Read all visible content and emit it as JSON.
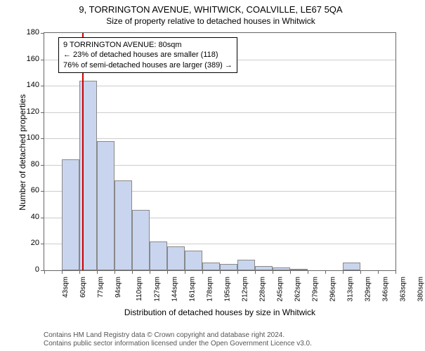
{
  "title": "9, TORRINGTON AVENUE, WHITWICK, COALVILLE, LE67 5QA",
  "subtitle": "Size of property relative to detached houses in Whitwick",
  "y_axis_label": "Number of detached properties",
  "x_axis_label": "Distribution of detached houses by size in Whitwick",
  "chart": {
    "type": "histogram",
    "ylim": [
      0,
      180
    ],
    "ytick_step": 20,
    "y_ticks": [
      0,
      20,
      40,
      60,
      80,
      100,
      120,
      140,
      160,
      180
    ],
    "x_tick_labels": [
      "43sqm",
      "60sqm",
      "77sqm",
      "94sqm",
      "110sqm",
      "127sqm",
      "144sqm",
      "161sqm",
      "178sqm",
      "195sqm",
      "212sqm",
      "228sqm",
      "245sqm",
      "262sqm",
      "279sqm",
      "296sqm",
      "313sqm",
      "329sqm",
      "346sqm",
      "363sqm",
      "380sqm"
    ],
    "bars": [
      {
        "value": 0
      },
      {
        "value": 84
      },
      {
        "value": 144
      },
      {
        "value": 98
      },
      {
        "value": 68
      },
      {
        "value": 46
      },
      {
        "value": 22
      },
      {
        "value": 18
      },
      {
        "value": 15
      },
      {
        "value": 6
      },
      {
        "value": 5
      },
      {
        "value": 8
      },
      {
        "value": 3
      },
      {
        "value": 2
      },
      {
        "value": 1
      },
      {
        "value": 0
      },
      {
        "value": 0
      },
      {
        "value": 6
      },
      {
        "value": 0
      },
      {
        "value": 0
      }
    ],
    "bar_fill": "#c9d5ee",
    "bar_border": "#888888",
    "background_color": "#ffffff",
    "grid_color": "#cccccc",
    "axis_color": "#666666",
    "marker_position_sqm": 80,
    "marker_color": "#cc0000"
  },
  "info_box": {
    "line1": "9 TORRINGTON AVENUE: 80sqm",
    "line2": "← 23% of detached houses are smaller (118)",
    "line3": "76% of semi-detached houses are larger (389) →"
  },
  "footer_line1": "Contains HM Land Registry data © Crown copyright and database right 2024.",
  "footer_line2": "Contains public sector information licensed under the Open Government Licence v3.0."
}
